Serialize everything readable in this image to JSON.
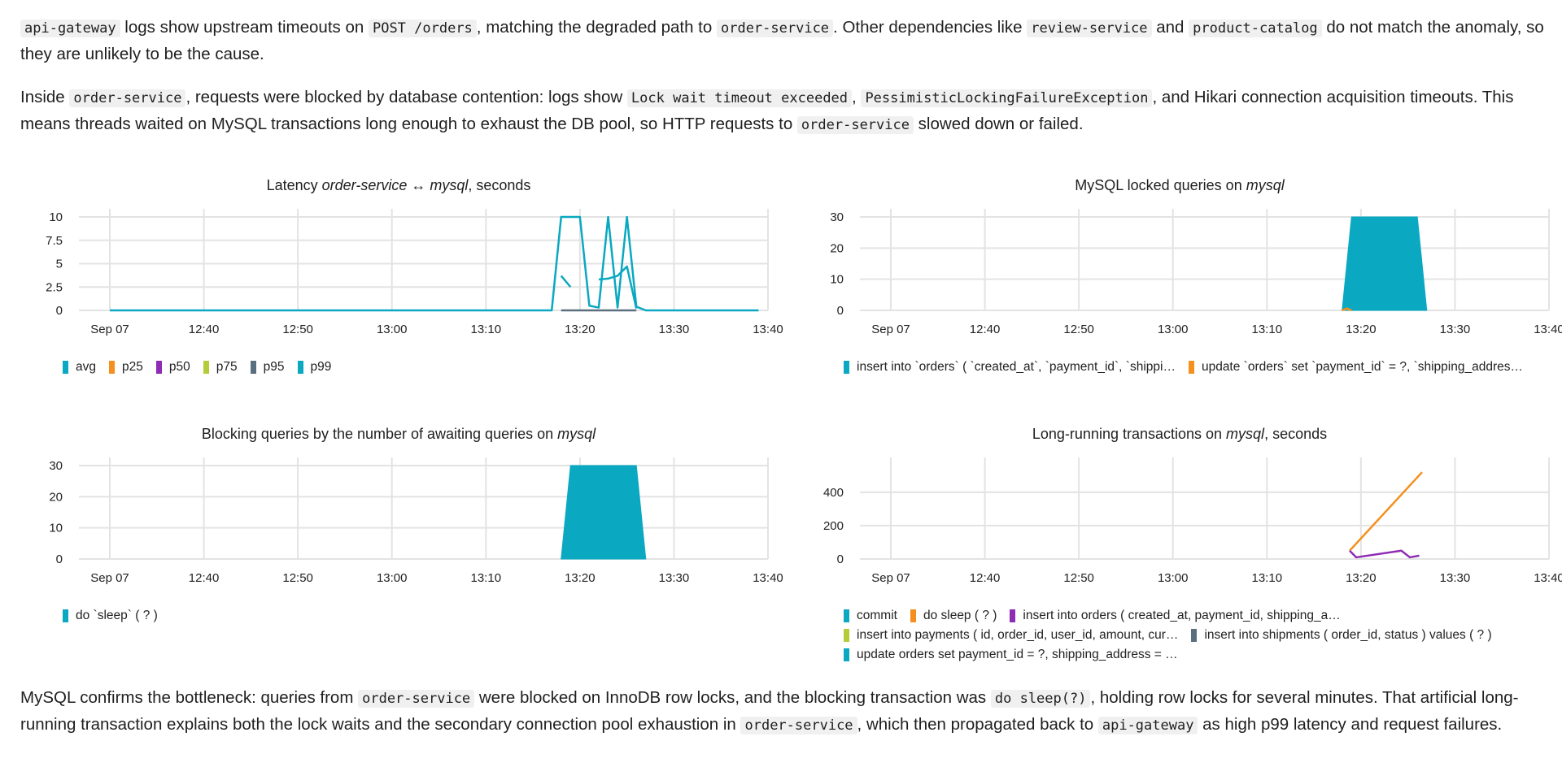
{
  "paragraphs": [
    [
      {
        "t": "code",
        "v": "api-gateway"
      },
      {
        "t": "text",
        "v": " logs show upstream timeouts on "
      },
      {
        "t": "code",
        "v": "POST /orders"
      },
      {
        "t": "text",
        "v": ", matching the degraded path to "
      },
      {
        "t": "code",
        "v": "order-service"
      },
      {
        "t": "text",
        "v": ". Other dependencies like "
      },
      {
        "t": "code",
        "v": "review-service"
      },
      {
        "t": "text",
        "v": " and "
      },
      {
        "t": "code",
        "v": "product-catalog"
      },
      {
        "t": "text",
        "v": " do not match the anomaly, so they are unlikely to be the cause."
      }
    ],
    [
      {
        "t": "text",
        "v": "Inside "
      },
      {
        "t": "code",
        "v": "order-service"
      },
      {
        "t": "text",
        "v": ", requests were blocked by database contention: logs show "
      },
      {
        "t": "code",
        "v": "Lock wait timeout exceeded"
      },
      {
        "t": "text",
        "v": ", "
      },
      {
        "t": "code",
        "v": "PessimisticLockingFailureException"
      },
      {
        "t": "text",
        "v": ", and Hikari connection acquisition timeouts. This means threads waited on MySQL transactions long enough to exhaust the DB pool, so HTTP requests to "
      },
      {
        "t": "code",
        "v": "order-service"
      },
      {
        "t": "text",
        "v": " slowed down or failed."
      }
    ],
    [
      {
        "t": "text",
        "v": "MySQL confirms the bottleneck: queries from "
      },
      {
        "t": "code",
        "v": "order-service"
      },
      {
        "t": "text",
        "v": " were blocked on InnoDB row locks, and the blocking transaction was "
      },
      {
        "t": "code",
        "v": "do sleep(?)"
      },
      {
        "t": "text",
        "v": ", holding row locks for several minutes. That artificial long-running transaction explains both the lock waits and the secondary connection pool exhaustion in "
      },
      {
        "t": "code",
        "v": "order-service"
      },
      {
        "t": "text",
        "v": ", which then propagated back to "
      },
      {
        "t": "code",
        "v": "api-gateway"
      },
      {
        "t": "text",
        "v": " as high p99 latency and request failures."
      }
    ]
  ],
  "x_ticks": [
    "Sep 07",
    "12:40",
    "12:50",
    "13:00",
    "13:10",
    "13:20",
    "13:30",
    "13:40"
  ],
  "chart_data": [
    {
      "type": "line",
      "title_parts": [
        {
          "t": "Latency "
        },
        {
          "t": "order-service ↔ mysql",
          "i": true
        },
        {
          "t": ", seconds"
        }
      ],
      "x_ticks": [
        "Sep 07",
        "12:40",
        "12:50",
        "13:00",
        "13:10",
        "13:20",
        "13:30",
        "13:40"
      ],
      "y_ticks": [
        "10",
        "7.5",
        "5",
        "2.5",
        "0"
      ],
      "ylim": [
        0,
        10
      ],
      "legend": [
        {
          "name": "avg",
          "color": "#0aa8c1"
        },
        {
          "name": "p25",
          "color": "#f5901e"
        },
        {
          "name": "p50",
          "color": "#8e2cb5"
        },
        {
          "name": "p75",
          "color": "#b5cc3a"
        },
        {
          "name": "p95",
          "color": "#5a6f7d"
        },
        {
          "name": "p99",
          "color": "#0aa8c1"
        }
      ],
      "series": [
        {
          "name": "p99",
          "color": "#0aa8c1",
          "points": [
            [
              "12:30",
              0
            ],
            [
              "13:17",
              0
            ],
            [
              "13:18",
              10
            ],
            [
              "13:20",
              10
            ],
            [
              "13:21",
              0.5
            ],
            [
              "13:22",
              0.3
            ],
            [
              "13:23",
              10
            ],
            [
              "13:24",
              0.3
            ],
            [
              "13:25",
              10
            ],
            [
              "13:26",
              0.4
            ],
            [
              "13:27",
              0
            ],
            [
              "13:39",
              0
            ]
          ]
        },
        {
          "name": "avg",
          "color": "#0aa8c1",
          "points": [
            [
              "13:18",
              3.7
            ],
            [
              "13:19",
              2.5
            ]
          ]
        },
        {
          "name": "avg",
          "color": "#0aa8c1",
          "points": [
            [
              "13:22",
              3.3
            ],
            [
              "13:23",
              3.4
            ],
            [
              "13:24",
              3.7
            ],
            [
              "13:25",
              4.7
            ],
            [
              "13:26",
              0.2
            ]
          ]
        },
        {
          "name": "p95",
          "color": "#5a6f7d",
          "points": [
            [
              "13:18",
              0
            ],
            [
              "13:26",
              0
            ]
          ]
        }
      ]
    },
    {
      "type": "area",
      "title_parts": [
        {
          "t": "MySQL locked queries on "
        },
        {
          "t": "mysql",
          "i": true
        }
      ],
      "x_ticks": [
        "Sep 07",
        "12:40",
        "12:50",
        "13:00",
        "13:10",
        "13:20",
        "13:30",
        "13:40"
      ],
      "y_ticks": [
        "30",
        "20",
        "10",
        "0"
      ],
      "ylim": [
        0,
        30
      ],
      "legend": [
        {
          "name": "insert into `orders` ( `created_at`, `payment_id`, `shippi…",
          "color": "#0aa8c1"
        },
        {
          "name": "update `orders` set `payment_id` = ?, `shipping_addres…",
          "color": "#f5901e"
        }
      ],
      "series": [
        {
          "name": "insert into `orders`",
          "color": "#0aa8c1",
          "area": true,
          "points": [
            [
              "13:18",
              0
            ],
            [
              "13:19",
              30
            ],
            [
              "13:26",
              30
            ],
            [
              "13:27",
              0
            ]
          ]
        },
        {
          "name": "update `orders`",
          "color": "#f5901e",
          "points": [
            [
              "13:18",
              0
            ],
            [
              "13:18.5",
              0.6
            ],
            [
              "13:19",
              0
            ]
          ]
        }
      ]
    },
    {
      "type": "area",
      "title_parts": [
        {
          "t": "Blocking queries by the number of awaiting queries on "
        },
        {
          "t": "mysql",
          "i": true
        }
      ],
      "x_ticks": [
        "Sep 07",
        "12:40",
        "12:50",
        "13:00",
        "13:10",
        "13:20",
        "13:30",
        "13:40"
      ],
      "y_ticks": [
        "30",
        "20",
        "10",
        "0"
      ],
      "ylim": [
        0,
        30
      ],
      "legend": [
        {
          "name": "do `sleep` ( ? )",
          "color": "#0aa8c1"
        }
      ],
      "series": [
        {
          "name": "do `sleep` ( ? )",
          "color": "#0aa8c1",
          "area": true,
          "points": [
            [
              "13:18",
              0
            ],
            [
              "13:19",
              30
            ],
            [
              "13:26",
              30
            ],
            [
              "13:27",
              0
            ]
          ]
        }
      ]
    },
    {
      "type": "line",
      "title_parts": [
        {
          "t": "Long-running transactions on "
        },
        {
          "t": "mysql",
          "i": true
        },
        {
          "t": ", seconds"
        }
      ],
      "x_ticks": [
        "Sep 07",
        "12:40",
        "12:50",
        "13:00",
        "13:10",
        "13:20",
        "13:30",
        "13:40"
      ],
      "y_ticks": [
        "400",
        "200",
        "0"
      ],
      "ylim": [
        0,
        560
      ],
      "legend_rows": [
        [
          {
            "name": "commit",
            "color": "#0aa8c1"
          },
          {
            "name": "do sleep ( ? )",
            "color": "#f5901e"
          },
          {
            "name": "insert into orders ( created_at, payment_id, shipping_a…",
            "color": "#8e2cb5"
          }
        ],
        [
          {
            "name": "insert into payments ( id, order_id, user_id, amount, cur…",
            "color": "#b5cc3a"
          },
          {
            "name": "insert into shipments ( order_id, status ) values ( ? )",
            "color": "#5a6f7d"
          }
        ],
        [
          {
            "name": "update orders set payment_id = ?, shipping_address = …",
            "color": "#0aa8c1"
          }
        ]
      ],
      "series": [
        {
          "name": "do sleep ( ? )",
          "color": "#f5901e",
          "points": [
            [
              "13:18.8",
              50
            ],
            [
              "13:26.5",
              520
            ]
          ]
        },
        {
          "name": "insert into orders",
          "color": "#8e2cb5",
          "points": [
            [
              "13:18.8",
              50
            ],
            [
              "13:19.5",
              10
            ],
            [
              "13:24.3",
              50
            ],
            [
              "13:25.2",
              10
            ],
            [
              "13:26.2",
              20
            ]
          ]
        }
      ]
    }
  ]
}
